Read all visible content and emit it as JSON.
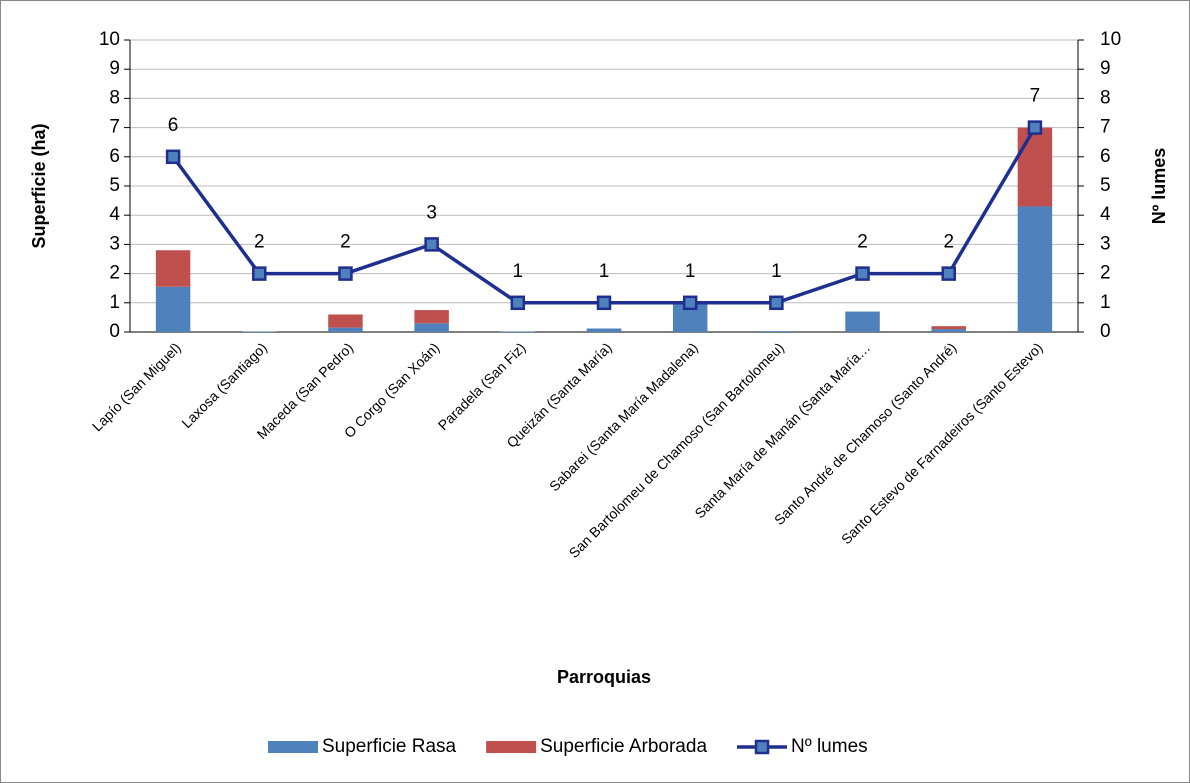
{
  "chart_data": {
    "type": "combo",
    "categories": [
      "Lapío (San Miguel)",
      "Laxosa (Santiago)",
      "Maceda (San Pedro)",
      "O Corgo (San Xoán)",
      "Paradela (San Fiz)",
      "Queizán (Santa María)",
      "Sabarei (Santa María Madalena)",
      "San Bartolomeu de Chamoso (San Bartolomeu)",
      "Santa María de Manán (Santa María…",
      "Santo André de Chamoso (Santo André)",
      "Santo Estevo de Farnadeiros (Santo Estevo)"
    ],
    "series": [
      {
        "name": "Superficie Rasa",
        "type": "bar",
        "color": "#4f81bd",
        "values": [
          1.55,
          0.02,
          0.15,
          0.3,
          0.02,
          0.12,
          0.95,
          0.03,
          0.7,
          0.1,
          4.3
        ]
      },
      {
        "name": "Superficie Arborada",
        "type": "bar",
        "color": "#c0504d",
        "values": [
          1.25,
          0,
          0.45,
          0.45,
          0,
          0,
          0,
          0,
          0,
          0.1,
          2.7
        ]
      },
      {
        "name": "Nº lumes",
        "type": "line",
        "axis": "y2",
        "color": "#1f2f8f",
        "values": [
          6,
          2,
          2,
          3,
          1,
          1,
          1,
          1,
          2,
          2,
          7
        ]
      }
    ],
    "stacked": true,
    "x_label": "Parroquias",
    "y_label": "Superficie (ha)",
    "y2_label": "Nº lumes",
    "ylim": [
      0,
      10
    ],
    "yticks": [
      0,
      1,
      2,
      3,
      4,
      5,
      6,
      7,
      8,
      9,
      10
    ],
    "y2lim": [
      0,
      10
    ],
    "y2ticks": [
      0,
      1,
      2,
      3,
      4,
      5,
      6,
      7,
      8,
      9,
      10
    ],
    "grid": true,
    "legend": "bottom"
  }
}
